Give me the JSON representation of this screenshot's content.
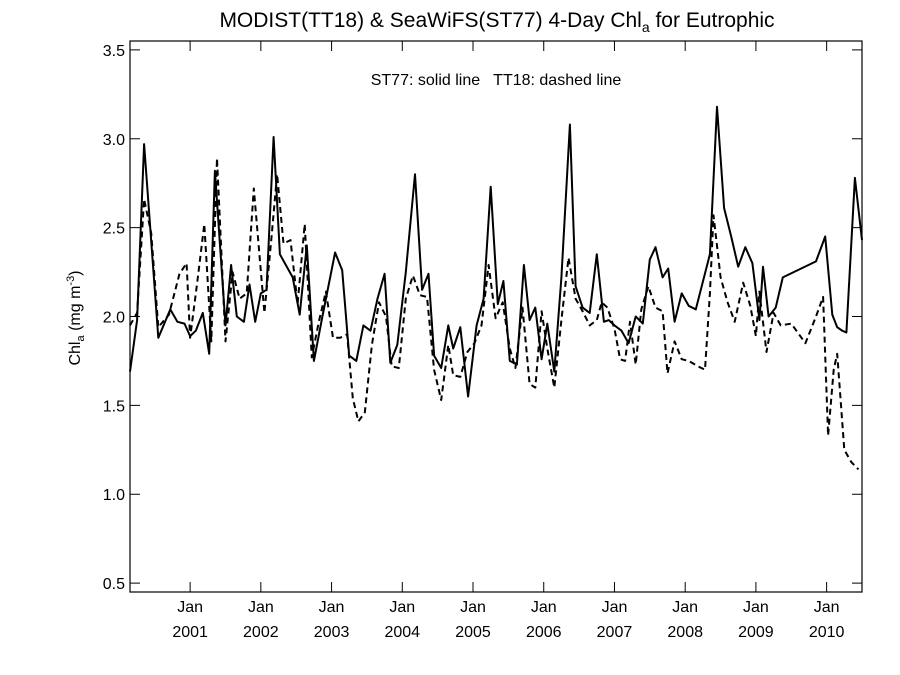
{
  "chart_data": {
    "type": "line",
    "title": {
      "main": "MODIST(TT18) & SeaWiFS(ST77) 4-Day Chl",
      "subscript": "a",
      "suffix": " for Eutrophic"
    },
    "annotation": "ST77: solid line   TT18: dashed line",
    "ylabel": {
      "prefix": "Chl",
      "subscript": "a",
      "units": " (mg m",
      "superscript": "-3",
      "close": ")"
    },
    "xlim": [
      2000.15,
      2010.5
    ],
    "ylim": [
      0.45,
      3.55
    ],
    "y_ticks": [
      0.5,
      1.0,
      1.5,
      2.0,
      2.5,
      3.0,
      3.5
    ],
    "y_tick_labels": [
      "0.5",
      "1.0",
      "1.5",
      "2.0",
      "2.5",
      "3.0",
      "3.5"
    ],
    "x_ticks": [
      2001.0,
      2002.0,
      2003.0,
      2004.0,
      2005.0,
      2006.0,
      2007.0,
      2008.0,
      2009.0,
      2010.0
    ],
    "x_tick_month_label": "Jan",
    "x_tick_year_labels": [
      "2001",
      "2002",
      "2003",
      "2004",
      "2005",
      "2006",
      "2007",
      "2008",
      "2009",
      "2010"
    ],
    "grid": false,
    "series": [
      {
        "id": "ST77",
        "style": "solid",
        "color": "#000000",
        "points": [
          [
            2000.15,
            1.69
          ],
          [
            2000.25,
            1.98
          ],
          [
            2000.35,
            2.97
          ],
          [
            2000.55,
            1.88
          ],
          [
            2000.72,
            2.04
          ],
          [
            2000.82,
            1.97
          ],
          [
            2000.92,
            1.96
          ],
          [
            2001.0,
            1.89
          ],
          [
            2001.08,
            1.92
          ],
          [
            2001.18,
            2.02
          ],
          [
            2001.27,
            1.79
          ],
          [
            2001.35,
            2.82
          ],
          [
            2001.5,
            1.95
          ],
          [
            2001.58,
            2.29
          ],
          [
            2001.66,
            2.0
          ],
          [
            2001.76,
            1.97
          ],
          [
            2001.84,
            2.18
          ],
          [
            2001.92,
            1.97
          ],
          [
            2002.0,
            2.13
          ],
          [
            2002.08,
            2.15
          ],
          [
            2002.18,
            3.01
          ],
          [
            2002.27,
            2.35
          ],
          [
            2002.45,
            2.22
          ],
          [
            2002.55,
            2.01
          ],
          [
            2002.65,
            2.4
          ],
          [
            2002.75,
            1.75
          ],
          [
            2002.87,
            2.0
          ],
          [
            2003.05,
            2.36
          ],
          [
            2003.15,
            2.26
          ],
          [
            2003.25,
            1.78
          ],
          [
            2003.35,
            1.75
          ],
          [
            2003.45,
            1.95
          ],
          [
            2003.55,
            1.92
          ],
          [
            2003.65,
            2.1
          ],
          [
            2003.75,
            2.24
          ],
          [
            2003.83,
            1.74
          ],
          [
            2003.93,
            1.84
          ],
          [
            2004.05,
            2.25
          ],
          [
            2004.18,
            2.8
          ],
          [
            2004.28,
            2.15
          ],
          [
            2004.37,
            2.24
          ],
          [
            2004.45,
            1.78
          ],
          [
            2004.55,
            1.71
          ],
          [
            2004.65,
            1.95
          ],
          [
            2004.72,
            1.82
          ],
          [
            2004.82,
            1.94
          ],
          [
            2004.93,
            1.55
          ],
          [
            2005.05,
            1.95
          ],
          [
            2005.15,
            2.1
          ],
          [
            2005.25,
            2.73
          ],
          [
            2005.35,
            2.07
          ],
          [
            2005.43,
            2.2
          ],
          [
            2005.52,
            1.75
          ],
          [
            2005.62,
            1.73
          ],
          [
            2005.72,
            2.29
          ],
          [
            2005.8,
            1.98
          ],
          [
            2005.88,
            2.05
          ],
          [
            2005.97,
            1.76
          ],
          [
            2006.05,
            1.96
          ],
          [
            2006.15,
            1.69
          ],
          [
            2006.25,
            2.22
          ],
          [
            2006.37,
            3.08
          ],
          [
            2006.45,
            2.17
          ],
          [
            2006.55,
            2.05
          ],
          [
            2006.65,
            2.02
          ],
          [
            2006.75,
            2.35
          ],
          [
            2006.85,
            1.97
          ],
          [
            2006.92,
            1.98
          ],
          [
            2007.0,
            1.95
          ],
          [
            2007.1,
            1.92
          ],
          [
            2007.2,
            1.85
          ],
          [
            2007.3,
            2.0
          ],
          [
            2007.4,
            1.96
          ],
          [
            2007.5,
            2.32
          ],
          [
            2007.58,
            2.39
          ],
          [
            2007.68,
            2.22
          ],
          [
            2007.76,
            2.27
          ],
          [
            2007.85,
            1.97
          ],
          [
            2007.95,
            2.13
          ],
          [
            2008.05,
            2.06
          ],
          [
            2008.15,
            2.04
          ],
          [
            2008.35,
            2.35
          ],
          [
            2008.45,
            3.18
          ],
          [
            2008.55,
            2.61
          ],
          [
            2008.65,
            2.45
          ],
          [
            2008.75,
            2.28
          ],
          [
            2008.85,
            2.39
          ],
          [
            2008.95,
            2.3
          ],
          [
            2009.05,
            1.98
          ],
          [
            2009.1,
            2.28
          ],
          [
            2009.18,
            2.0
          ],
          [
            2009.28,
            2.05
          ],
          [
            2009.38,
            2.22
          ],
          [
            2009.85,
            2.31
          ],
          [
            2009.98,
            2.45
          ],
          [
            2010.08,
            2.01
          ],
          [
            2010.15,
            1.94
          ],
          [
            2010.22,
            1.92
          ],
          [
            2010.28,
            1.91
          ],
          [
            2010.4,
            2.78
          ],
          [
            2010.5,
            2.43
          ]
        ]
      },
      {
        "id": "TT18",
        "style": "dashed",
        "color": "#000000",
        "points": [
          [
            2000.15,
            1.95
          ],
          [
            2000.25,
            2.02
          ],
          [
            2000.35,
            2.66
          ],
          [
            2000.45,
            2.47
          ],
          [
            2000.55,
            1.94
          ],
          [
            2000.7,
            2.01
          ],
          [
            2000.85,
            2.24
          ],
          [
            2000.95,
            2.3
          ],
          [
            2001.0,
            1.88
          ],
          [
            2001.1,
            2.19
          ],
          [
            2001.2,
            2.52
          ],
          [
            2001.3,
            1.86
          ],
          [
            2001.38,
            2.89
          ],
          [
            2001.5,
            1.86
          ],
          [
            2001.6,
            2.25
          ],
          [
            2001.7,
            2.1
          ],
          [
            2001.8,
            2.13
          ],
          [
            2001.9,
            2.72
          ],
          [
            2002.05,
            2.02
          ],
          [
            2002.15,
            2.44
          ],
          [
            2002.23,
            2.8
          ],
          [
            2002.32,
            2.41
          ],
          [
            2002.42,
            2.43
          ],
          [
            2002.52,
            2.07
          ],
          [
            2002.62,
            2.52
          ],
          [
            2002.72,
            1.77
          ],
          [
            2002.82,
            1.97
          ],
          [
            2002.92,
            2.14
          ],
          [
            2003.02,
            1.88
          ],
          [
            2003.12,
            1.88
          ],
          [
            2003.22,
            1.9
          ],
          [
            2003.3,
            1.54
          ],
          [
            2003.38,
            1.41
          ],
          [
            2003.47,
            1.46
          ],
          [
            2003.57,
            1.84
          ],
          [
            2003.67,
            2.08
          ],
          [
            2003.77,
            2.0
          ],
          [
            2003.85,
            1.72
          ],
          [
            2003.95,
            1.71
          ],
          [
            2004.05,
            2.1
          ],
          [
            2004.15,
            2.23
          ],
          [
            2004.25,
            2.12
          ],
          [
            2004.35,
            2.11
          ],
          [
            2004.45,
            1.7
          ],
          [
            2004.55,
            1.53
          ],
          [
            2004.65,
            1.84
          ],
          [
            2004.72,
            1.67
          ],
          [
            2004.82,
            1.66
          ],
          [
            2004.92,
            1.8
          ],
          [
            2005.02,
            1.85
          ],
          [
            2005.12,
            1.95
          ],
          [
            2005.22,
            2.29
          ],
          [
            2005.32,
            1.99
          ],
          [
            2005.42,
            2.08
          ],
          [
            2005.52,
            1.82
          ],
          [
            2005.6,
            1.71
          ],
          [
            2005.7,
            2.05
          ],
          [
            2005.8,
            1.62
          ],
          [
            2005.88,
            1.6
          ],
          [
            2005.97,
            2.03
          ],
          [
            2006.05,
            1.82
          ],
          [
            2006.15,
            1.6
          ],
          [
            2006.25,
            1.98
          ],
          [
            2006.35,
            2.33
          ],
          [
            2006.45,
            2.1
          ],
          [
            2006.55,
            2.03
          ],
          [
            2006.65,
            1.95
          ],
          [
            2006.75,
            1.98
          ],
          [
            2006.82,
            2.08
          ],
          [
            2006.9,
            2.05
          ],
          [
            2007.0,
            1.93
          ],
          [
            2007.08,
            1.76
          ],
          [
            2007.15,
            1.75
          ],
          [
            2007.22,
            1.97
          ],
          [
            2007.3,
            1.73
          ],
          [
            2007.38,
            2.04
          ],
          [
            2007.48,
            2.17
          ],
          [
            2007.58,
            2.05
          ],
          [
            2007.68,
            2.03
          ],
          [
            2007.75,
            1.68
          ],
          [
            2007.85,
            1.86
          ],
          [
            2007.95,
            1.76
          ],
          [
            2008.05,
            1.75
          ],
          [
            2008.18,
            1.72
          ],
          [
            2008.28,
            1.7
          ],
          [
            2008.35,
            2.13
          ],
          [
            2008.4,
            2.57
          ],
          [
            2008.5,
            2.22
          ],
          [
            2008.6,
            2.08
          ],
          [
            2008.7,
            1.97
          ],
          [
            2008.82,
            2.19
          ],
          [
            2008.92,
            2.06
          ],
          [
            2009.0,
            1.89
          ],
          [
            2009.05,
            2.14
          ],
          [
            2009.15,
            1.8
          ],
          [
            2009.25,
            2.02
          ],
          [
            2009.35,
            1.95
          ],
          [
            2009.5,
            1.96
          ],
          [
            2009.7,
            1.85
          ],
          [
            2009.85,
            2.0
          ],
          [
            2009.95,
            2.11
          ],
          [
            2010.02,
            1.33
          ],
          [
            2010.1,
            1.7
          ],
          [
            2010.15,
            1.79
          ],
          [
            2010.25,
            1.25
          ],
          [
            2010.35,
            1.18
          ],
          [
            2010.45,
            1.14
          ]
        ]
      }
    ]
  }
}
